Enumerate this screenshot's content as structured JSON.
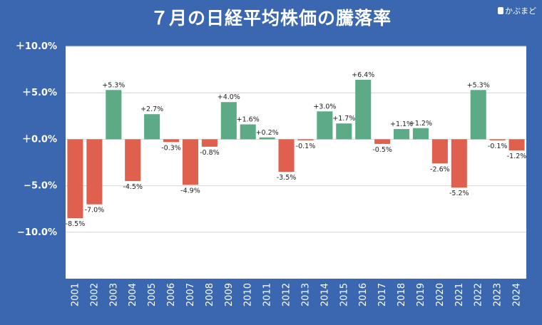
{
  "title": "７月の日経平均株価の騰落率",
  "brand": "かぶまど",
  "chart_data": {
    "type": "bar",
    "title": "７月の日経平均株価の騰落率",
    "categories": [
      "2001",
      "2002",
      "2003",
      "2004",
      "2005",
      "2006",
      "2007",
      "2008",
      "2009",
      "2010",
      "2011",
      "2012",
      "2013",
      "2014",
      "2015",
      "2016",
      "2017",
      "2018",
      "2019",
      "2020",
      "2021",
      "2022",
      "2023",
      "2024"
    ],
    "values": [
      -8.5,
      -7.0,
      5.3,
      -4.5,
      2.7,
      -0.3,
      -4.9,
      -0.8,
      4.0,
      1.6,
      0.2,
      -3.5,
      -0.1,
      3.0,
      1.7,
      6.4,
      -0.5,
      1.1,
      1.2,
      -2.6,
      -5.2,
      5.3,
      -0.1,
      -1.2
    ],
    "data_labels": [
      "-8.5%",
      "-7.0%",
      "+5.3%",
      "-4.5%",
      "+2.7%",
      "-0.3%",
      "-4.9%",
      "-0.8%",
      "+4.0%",
      "+1.6%",
      "+0.2%",
      "-3.5%",
      "-0.1%",
      "+3.0%",
      "+1.7%",
      "+6.4%",
      "-0.5%",
      "+1.1%",
      "+1.2%",
      "-2.6%",
      "-5.2%",
      "+5.3%",
      "-0.1%",
      "-1.2%"
    ],
    "y_ticks": [
      10,
      5,
      0,
      -5,
      -10
    ],
    "y_tick_labels": [
      "＋10.0%",
      "＋5.0%",
      "＋0.0%",
      "−5.0%",
      "−10.0%"
    ],
    "ylim": [
      -15,
      10
    ],
    "xlabel": "",
    "ylabel": "",
    "grid": true,
    "colors": {
      "positive": "#5daa87",
      "negative": "#e0604f",
      "plot_bg": "#ffffff",
      "grid": "#d4d4d4",
      "page_bg": "#3a67b0"
    }
  }
}
